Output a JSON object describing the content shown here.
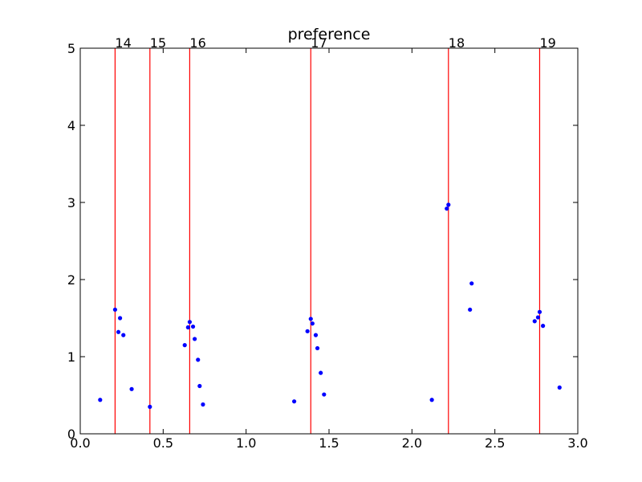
{
  "chart_data": {
    "type": "scatter",
    "title": "preference",
    "xlabel": "",
    "ylabel": "",
    "xlim": [
      0.0,
      3.0
    ],
    "ylim": [
      0,
      5
    ],
    "x_ticks": [
      0.0,
      0.5,
      1.0,
      1.5,
      2.0,
      2.5,
      3.0
    ],
    "x_tick_labels": [
      "0.0",
      "0.5",
      "1.0",
      "1.5",
      "2.0",
      "2.5",
      "3.0"
    ],
    "y_ticks": [
      0,
      1,
      2,
      3,
      4,
      5
    ],
    "y_tick_labels": [
      "0",
      "1",
      "2",
      "3",
      "4",
      "5"
    ],
    "grid": false,
    "point_color": "#0000ff",
    "vline_color": "#ff0000",
    "vertical_lines": [
      {
        "x": 0.21,
        "label": "14"
      },
      {
        "x": 0.42,
        "label": "15"
      },
      {
        "x": 0.66,
        "label": "16"
      },
      {
        "x": 1.39,
        "label": "17"
      },
      {
        "x": 2.22,
        "label": "18"
      },
      {
        "x": 2.77,
        "label": "19"
      }
    ],
    "points": [
      {
        "x": 0.12,
        "y": 0.44
      },
      {
        "x": 0.21,
        "y": 1.61
      },
      {
        "x": 0.23,
        "y": 1.32
      },
      {
        "x": 0.24,
        "y": 1.5
      },
      {
        "x": 0.26,
        "y": 1.28
      },
      {
        "x": 0.31,
        "y": 0.58
      },
      {
        "x": 0.42,
        "y": 0.35
      },
      {
        "x": 0.63,
        "y": 1.15
      },
      {
        "x": 0.65,
        "y": 1.38
      },
      {
        "x": 0.66,
        "y": 1.45
      },
      {
        "x": 0.68,
        "y": 1.39
      },
      {
        "x": 0.69,
        "y": 1.23
      },
      {
        "x": 0.71,
        "y": 0.96
      },
      {
        "x": 0.72,
        "y": 0.62
      },
      {
        "x": 0.74,
        "y": 0.38
      },
      {
        "x": 1.29,
        "y": 0.42
      },
      {
        "x": 1.37,
        "y": 1.33
      },
      {
        "x": 1.39,
        "y": 1.49
      },
      {
        "x": 1.4,
        "y": 1.43
      },
      {
        "x": 1.42,
        "y": 1.28
      },
      {
        "x": 1.43,
        "y": 1.11
      },
      {
        "x": 1.45,
        "y": 0.79
      },
      {
        "x": 1.47,
        "y": 0.51
      },
      {
        "x": 2.12,
        "y": 0.44
      },
      {
        "x": 2.21,
        "y": 2.92
      },
      {
        "x": 2.22,
        "y": 2.97
      },
      {
        "x": 2.35,
        "y": 1.61
      },
      {
        "x": 2.36,
        "y": 1.95
      },
      {
        "x": 2.74,
        "y": 1.46
      },
      {
        "x": 2.76,
        "y": 1.51
      },
      {
        "x": 2.77,
        "y": 1.58
      },
      {
        "x": 2.79,
        "y": 1.4
      },
      {
        "x": 2.89,
        "y": 0.6
      }
    ]
  }
}
